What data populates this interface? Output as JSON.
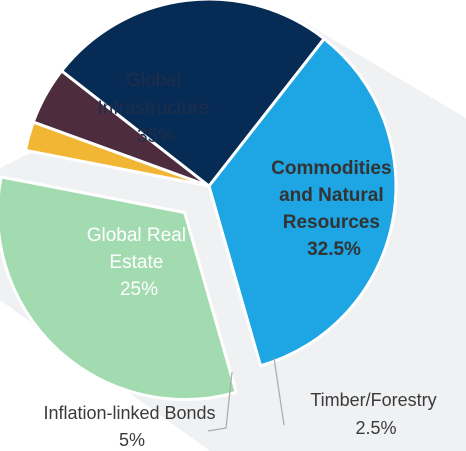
{
  "chart_data": {
    "type": "pie",
    "slices": [
      {
        "label": "Global Infrastructure",
        "value": 35,
        "percent_label": "35%",
        "color": "#1ea5e3",
        "label_color": "#1f2d4a"
      },
      {
        "label": "Commodities and Natural Resources",
        "value": 32.5,
        "percent_label": "32.5%",
        "color": "#a3dbb1",
        "label_color": "#333333",
        "exploded": true
      },
      {
        "label": "Timber/Forestry",
        "value": 2.5,
        "percent_label": "2.5%",
        "color": "#f2b635"
      },
      {
        "label": "Inflation-linked Bonds",
        "value": 5,
        "percent_label": "5%",
        "color": "#4d2c3d"
      },
      {
        "label": "Global Real Estate",
        "value": 25,
        "percent_label": "25%",
        "color": "#062b54",
        "label_color": "#ffffff"
      }
    ]
  },
  "labels": {
    "infra_line1": "Global",
    "infra_line2": "Infrastructure",
    "infra_pct": "35%",
    "comm_line1": "Commodities",
    "comm_line2": "and Natural",
    "comm_line3": "Resources",
    "comm_pct": "32.5%",
    "realestate_line1": "Global Real",
    "realestate_line2": "Estate",
    "realestate_pct": "25%",
    "timber_line1": "Timber/Forestry",
    "timber_pct": "2.5%",
    "bonds_line1": "Inflation-linked Bonds",
    "bonds_pct": "5%"
  },
  "colors": {
    "background_stripe": "#f0f1f3",
    "leader_line": "#a9a9a9"
  }
}
